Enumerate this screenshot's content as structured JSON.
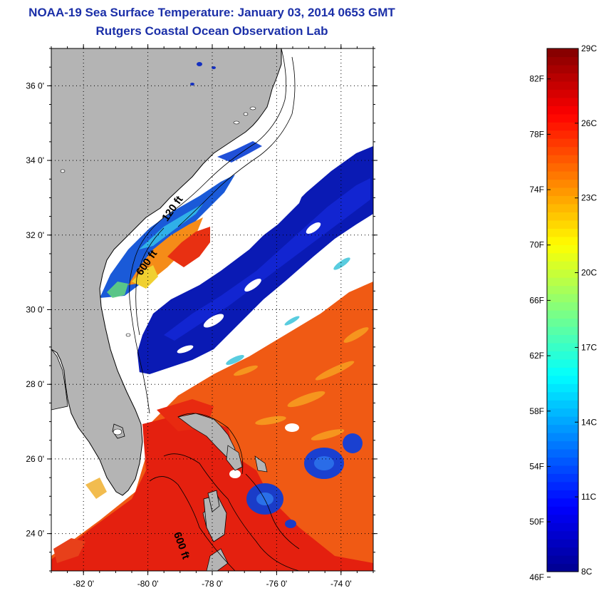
{
  "header": {
    "title": "NOAA-19 Sea Surface Temperature:  January 03, 2014 0653 GMT",
    "subtitle": "Rutgers Coastal Ocean Observation Lab"
  },
  "map": {
    "lon_range": [
      -83,
      -73
    ],
    "lat_range": [
      23,
      37
    ],
    "x_ticks": [
      {
        "lon": -82,
        "label": "-82 0'"
      },
      {
        "lon": -80,
        "label": "-80 0'"
      },
      {
        "lon": -78,
        "label": "-78 0'"
      },
      {
        "lon": -76,
        "label": "-76 0'"
      },
      {
        "lon": -74,
        "label": "-74 0'"
      }
    ],
    "y_ticks": [
      {
        "lat": 36,
        "label": "36 0'"
      },
      {
        "lat": 34,
        "label": "34 0'"
      },
      {
        "lat": 32,
        "label": "32 0'"
      },
      {
        "lat": 30,
        "label": "30 0'"
      },
      {
        "lat": 28,
        "label": "28 0'"
      },
      {
        "lat": 26,
        "label": "26 0'"
      },
      {
        "lat": 24,
        "label": "24 0'"
      }
    ],
    "contour_labels": [
      {
        "text": "120 ft",
        "lon": -79.4,
        "lat": 32.35
      },
      {
        "text": "600 ft",
        "lon": -80.2,
        "lat": 30.9
      },
      {
        "text": "600 ft",
        "lon": -79.2,
        "lat": 24.0
      }
    ],
    "colors": {
      "land": "#b4b4b4",
      "cloud": "#ffffff",
      "coast": "#000000"
    }
  },
  "colorbar": {
    "c_range": [
      8,
      29
    ],
    "c_labels": [
      {
        "c": 29,
        "label": "29C"
      },
      {
        "c": 26,
        "label": "26C"
      },
      {
        "c": 23,
        "label": "23C"
      },
      {
        "c": 20,
        "label": "20C"
      },
      {
        "c": 17,
        "label": "17C"
      },
      {
        "c": 14,
        "label": "14C"
      },
      {
        "c": 11,
        "label": "11C"
      },
      {
        "c": 8,
        "label": "8C"
      }
    ],
    "f_labels": [
      {
        "f": 82,
        "label": "82F"
      },
      {
        "f": 78,
        "label": "78F"
      },
      {
        "f": 74,
        "label": "74F"
      },
      {
        "f": 70,
        "label": "70F"
      },
      {
        "f": 66,
        "label": "66F"
      },
      {
        "f": 62,
        "label": "62F"
      },
      {
        "f": 58,
        "label": "58F"
      },
      {
        "f": 54,
        "label": "54F"
      },
      {
        "f": 50,
        "label": "50F"
      },
      {
        "f": 46,
        "label": "46F"
      }
    ],
    "colormap": [
      "#00008f",
      "#0000ff",
      "#0080ff",
      "#00ffff",
      "#80ff80",
      "#ffff00",
      "#ff8000",
      "#ff0000",
      "#800000"
    ]
  }
}
